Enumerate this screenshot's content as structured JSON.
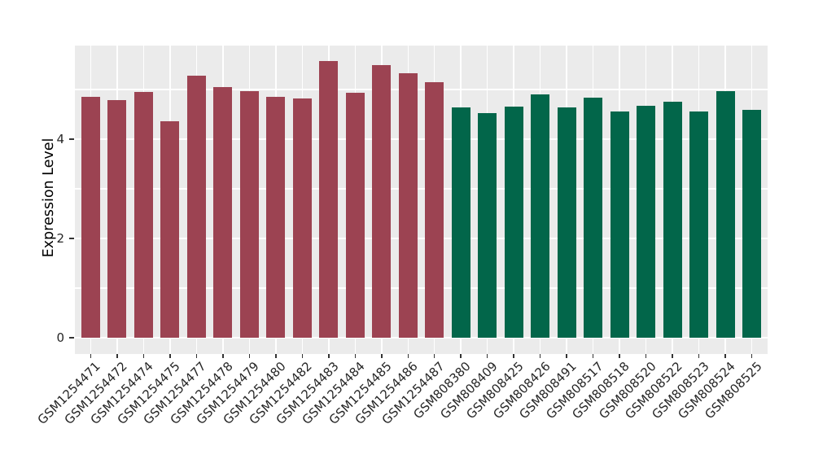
{
  "figure": {
    "background": "#ffffff",
    "panel_background": "#EBEBEB",
    "grid_color": "#FFFFFF",
    "axis_text_color": "#262626",
    "axis_title_color": "#000000",
    "tick_mark_color": "#333333"
  },
  "chart_data": {
    "type": "bar",
    "title": "",
    "xlabel": "",
    "ylabel": "Expression Level",
    "ylim": [
      0,
      5.9
    ],
    "yticks": [
      0,
      2,
      4
    ],
    "ytick_labels": [
      "0",
      "2",
      "4"
    ],
    "yminor": [
      1,
      3,
      5
    ],
    "grid": "white major and minor horizontal lines, vertical line at each category, gray panel",
    "legend_position": "none",
    "categories": [
      "GSM1254471",
      "GSM1254472",
      "GSM1254474",
      "GSM1254475",
      "GSM1254477",
      "GSM1254478",
      "GSM1254479",
      "GSM1254480",
      "GSM1254482",
      "GSM1254483",
      "GSM1254484",
      "GSM1254485",
      "GSM1254486",
      "GSM1254487",
      "GSM808380",
      "GSM808409",
      "GSM808425",
      "GSM808426",
      "GSM808491",
      "GSM808517",
      "GSM808518",
      "GSM808520",
      "GSM808522",
      "GSM808523",
      "GSM808524",
      "GSM808525"
    ],
    "values": [
      4.85,
      4.78,
      4.95,
      4.36,
      5.28,
      5.05,
      4.96,
      4.86,
      4.82,
      5.57,
      4.94,
      5.49,
      5.32,
      5.15,
      4.64,
      4.53,
      4.65,
      4.9,
      4.64,
      4.84,
      4.56,
      4.68,
      4.76,
      4.56,
      4.96,
      4.59
    ],
    "groups": [
      "group1",
      "group1",
      "group1",
      "group1",
      "group1",
      "group1",
      "group1",
      "group1",
      "group1",
      "group1",
      "group1",
      "group1",
      "group1",
      "group1",
      "group2",
      "group2",
      "group2",
      "group2",
      "group2",
      "group2",
      "group2",
      "group2",
      "group2",
      "group2",
      "group2",
      "group2"
    ],
    "group_colors": {
      "group1": "#9C4352",
      "group2": "#02664A"
    }
  }
}
